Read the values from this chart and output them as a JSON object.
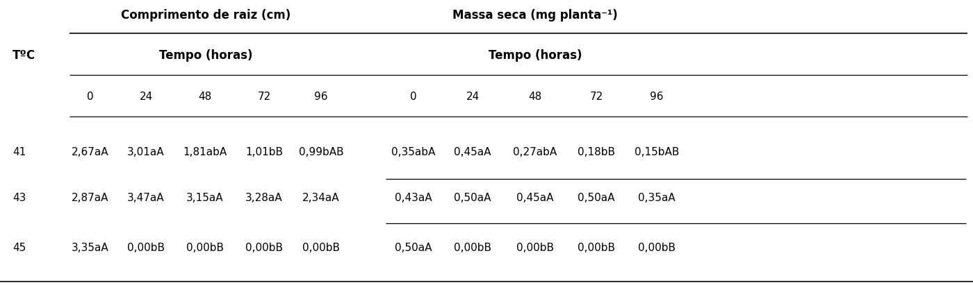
{
  "col_header_top_left": "Comprimento de raiz (cm)",
  "col_header_top_right": "Massa seca (mg planta⁻¹)",
  "col_header_mid": "Tempo (horas)",
  "col_header_times": [
    "0",
    "24",
    "48",
    "72",
    "96"
  ],
  "row_label": "TºC",
  "rows": [
    {
      "temp": "41",
      "comprimento": [
        "2,67aA",
        "3,01aA",
        "1,81abA",
        "1,01bB",
        "0,99bAB"
      ],
      "massa": [
        "0,35abA",
        "0,45aA",
        "0,27abA",
        "0,18bB",
        "0,15bAB"
      ]
    },
    {
      "temp": "43",
      "comprimento": [
        "2,87aA",
        "3,47aA",
        "3,15aA",
        "3,28aA",
        "2,34aA"
      ],
      "massa": [
        "0,43aA",
        "0,50aA",
        "0,45aA",
        "0,50aA",
        "0,35aA"
      ]
    },
    {
      "temp": "45",
      "comprimento": [
        "3,35aA",
        "0,00bB",
        "0,00bB",
        "0,00bB",
        "0,00bB"
      ],
      "massa": [
        "0,50aA",
        "0,00bB",
        "0,00bB",
        "0,00bB",
        "0,00bB"
      ]
    }
  ],
  "background_color": "#ffffff",
  "text_color": "#000000",
  "font_size": 11.0,
  "header_font_size": 12.0,
  "fig_width": 14.0,
  "fig_height": 4.11,
  "dpi": 100
}
